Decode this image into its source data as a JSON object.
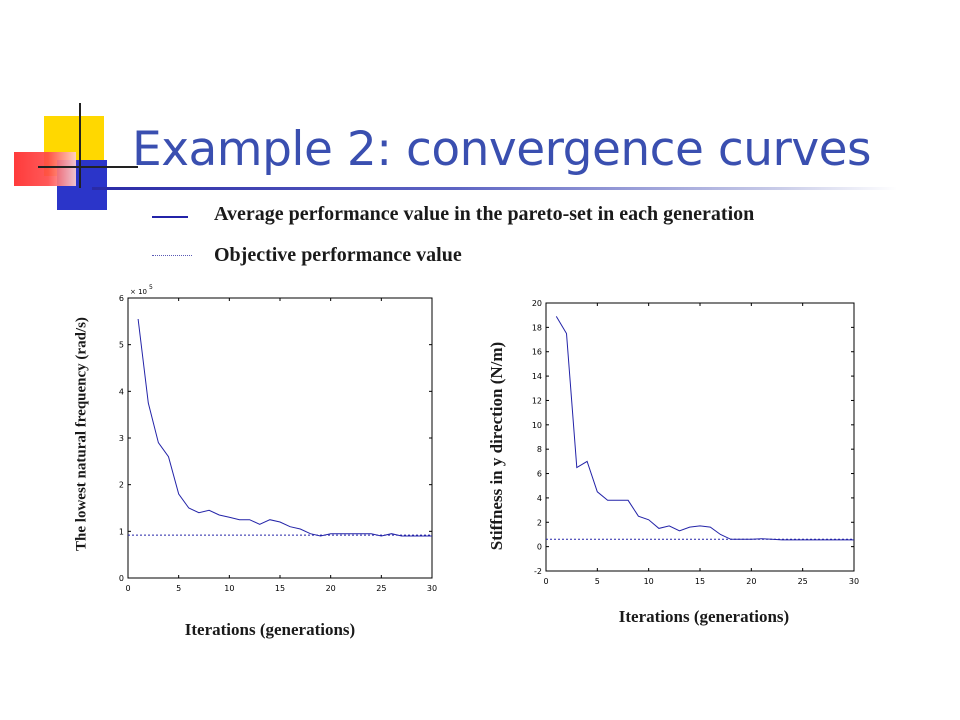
{
  "slide": {
    "title": "Example 2: convergence curves",
    "legend": {
      "solid_label": "Average performance value in the pareto-set in each generation",
      "dotted_label": "Objective performance value"
    },
    "colors": {
      "title": "#3a4fb0",
      "curve": "#2323a8",
      "deco_yellow": "#ffd800",
      "deco_red": "#ff3030",
      "deco_blue": "#2b35c9"
    }
  },
  "chart_data": [
    {
      "type": "line",
      "title": "",
      "xlabel": "Iterations (generations)",
      "ylabel": "The lowest natural frequency (rad/s)",
      "y_multiplier": "× 10",
      "y_multiplier_exp": "5",
      "xlim": [
        0,
        30
      ],
      "ylim": [
        0,
        6
      ],
      "xticks": [
        0,
        5,
        10,
        15,
        20,
        25,
        30
      ],
      "yticks": [
        0,
        1,
        2,
        3,
        4,
        5,
        6
      ],
      "grid": false,
      "series": [
        {
          "style": "solid",
          "x": [
            1,
            2,
            3,
            4,
            5,
            6,
            7,
            8,
            9,
            10,
            11,
            12,
            13,
            14,
            15,
            16,
            17,
            18,
            19,
            20,
            21,
            22,
            23,
            24,
            25,
            26,
            27,
            28,
            29,
            30
          ],
          "y": [
            5.55,
            3.75,
            2.9,
            2.6,
            1.8,
            1.5,
            1.4,
            1.45,
            1.35,
            1.3,
            1.25,
            1.25,
            1.15,
            1.25,
            1.2,
            1.1,
            1.05,
            0.95,
            0.9,
            0.95,
            0.95,
            0.95,
            0.95,
            0.95,
            0.9,
            0.95,
            0.9,
            0.9,
            0.9,
            0.9
          ]
        },
        {
          "style": "dotted",
          "x": [
            0,
            30
          ],
          "y": [
            0.92,
            0.92
          ]
        }
      ]
    },
    {
      "type": "line",
      "title": "",
      "xlabel": "Iterations (generations)",
      "ylabel": "Stiffness in y direction (N/m)",
      "xlim": [
        0,
        30
      ],
      "ylim": [
        -2,
        20
      ],
      "xticks": [
        0,
        5,
        10,
        15,
        20,
        25,
        30
      ],
      "yticks": [
        -2,
        0,
        2,
        4,
        6,
        8,
        10,
        12,
        14,
        16,
        18,
        20
      ],
      "grid": false,
      "series": [
        {
          "style": "solid",
          "x": [
            1,
            2,
            3,
            4,
            5,
            6,
            7,
            8,
            9,
            10,
            11,
            12,
            13,
            14,
            15,
            16,
            17,
            18,
            19,
            20,
            21,
            22,
            23,
            24,
            25,
            26,
            27,
            28,
            29,
            30
          ],
          "y": [
            18.9,
            17.5,
            6.5,
            7.0,
            4.5,
            3.8,
            3.8,
            3.8,
            2.5,
            2.2,
            1.5,
            1.7,
            1.3,
            1.6,
            1.7,
            1.6,
            1.0,
            0.6,
            0.6,
            0.6,
            0.65,
            0.6,
            0.55,
            0.55,
            0.55,
            0.55,
            0.55,
            0.55,
            0.55,
            0.55
          ]
        },
        {
          "style": "dotted",
          "x": [
            0,
            30
          ],
          "y": [
            0.6,
            0.6
          ]
        }
      ]
    }
  ]
}
